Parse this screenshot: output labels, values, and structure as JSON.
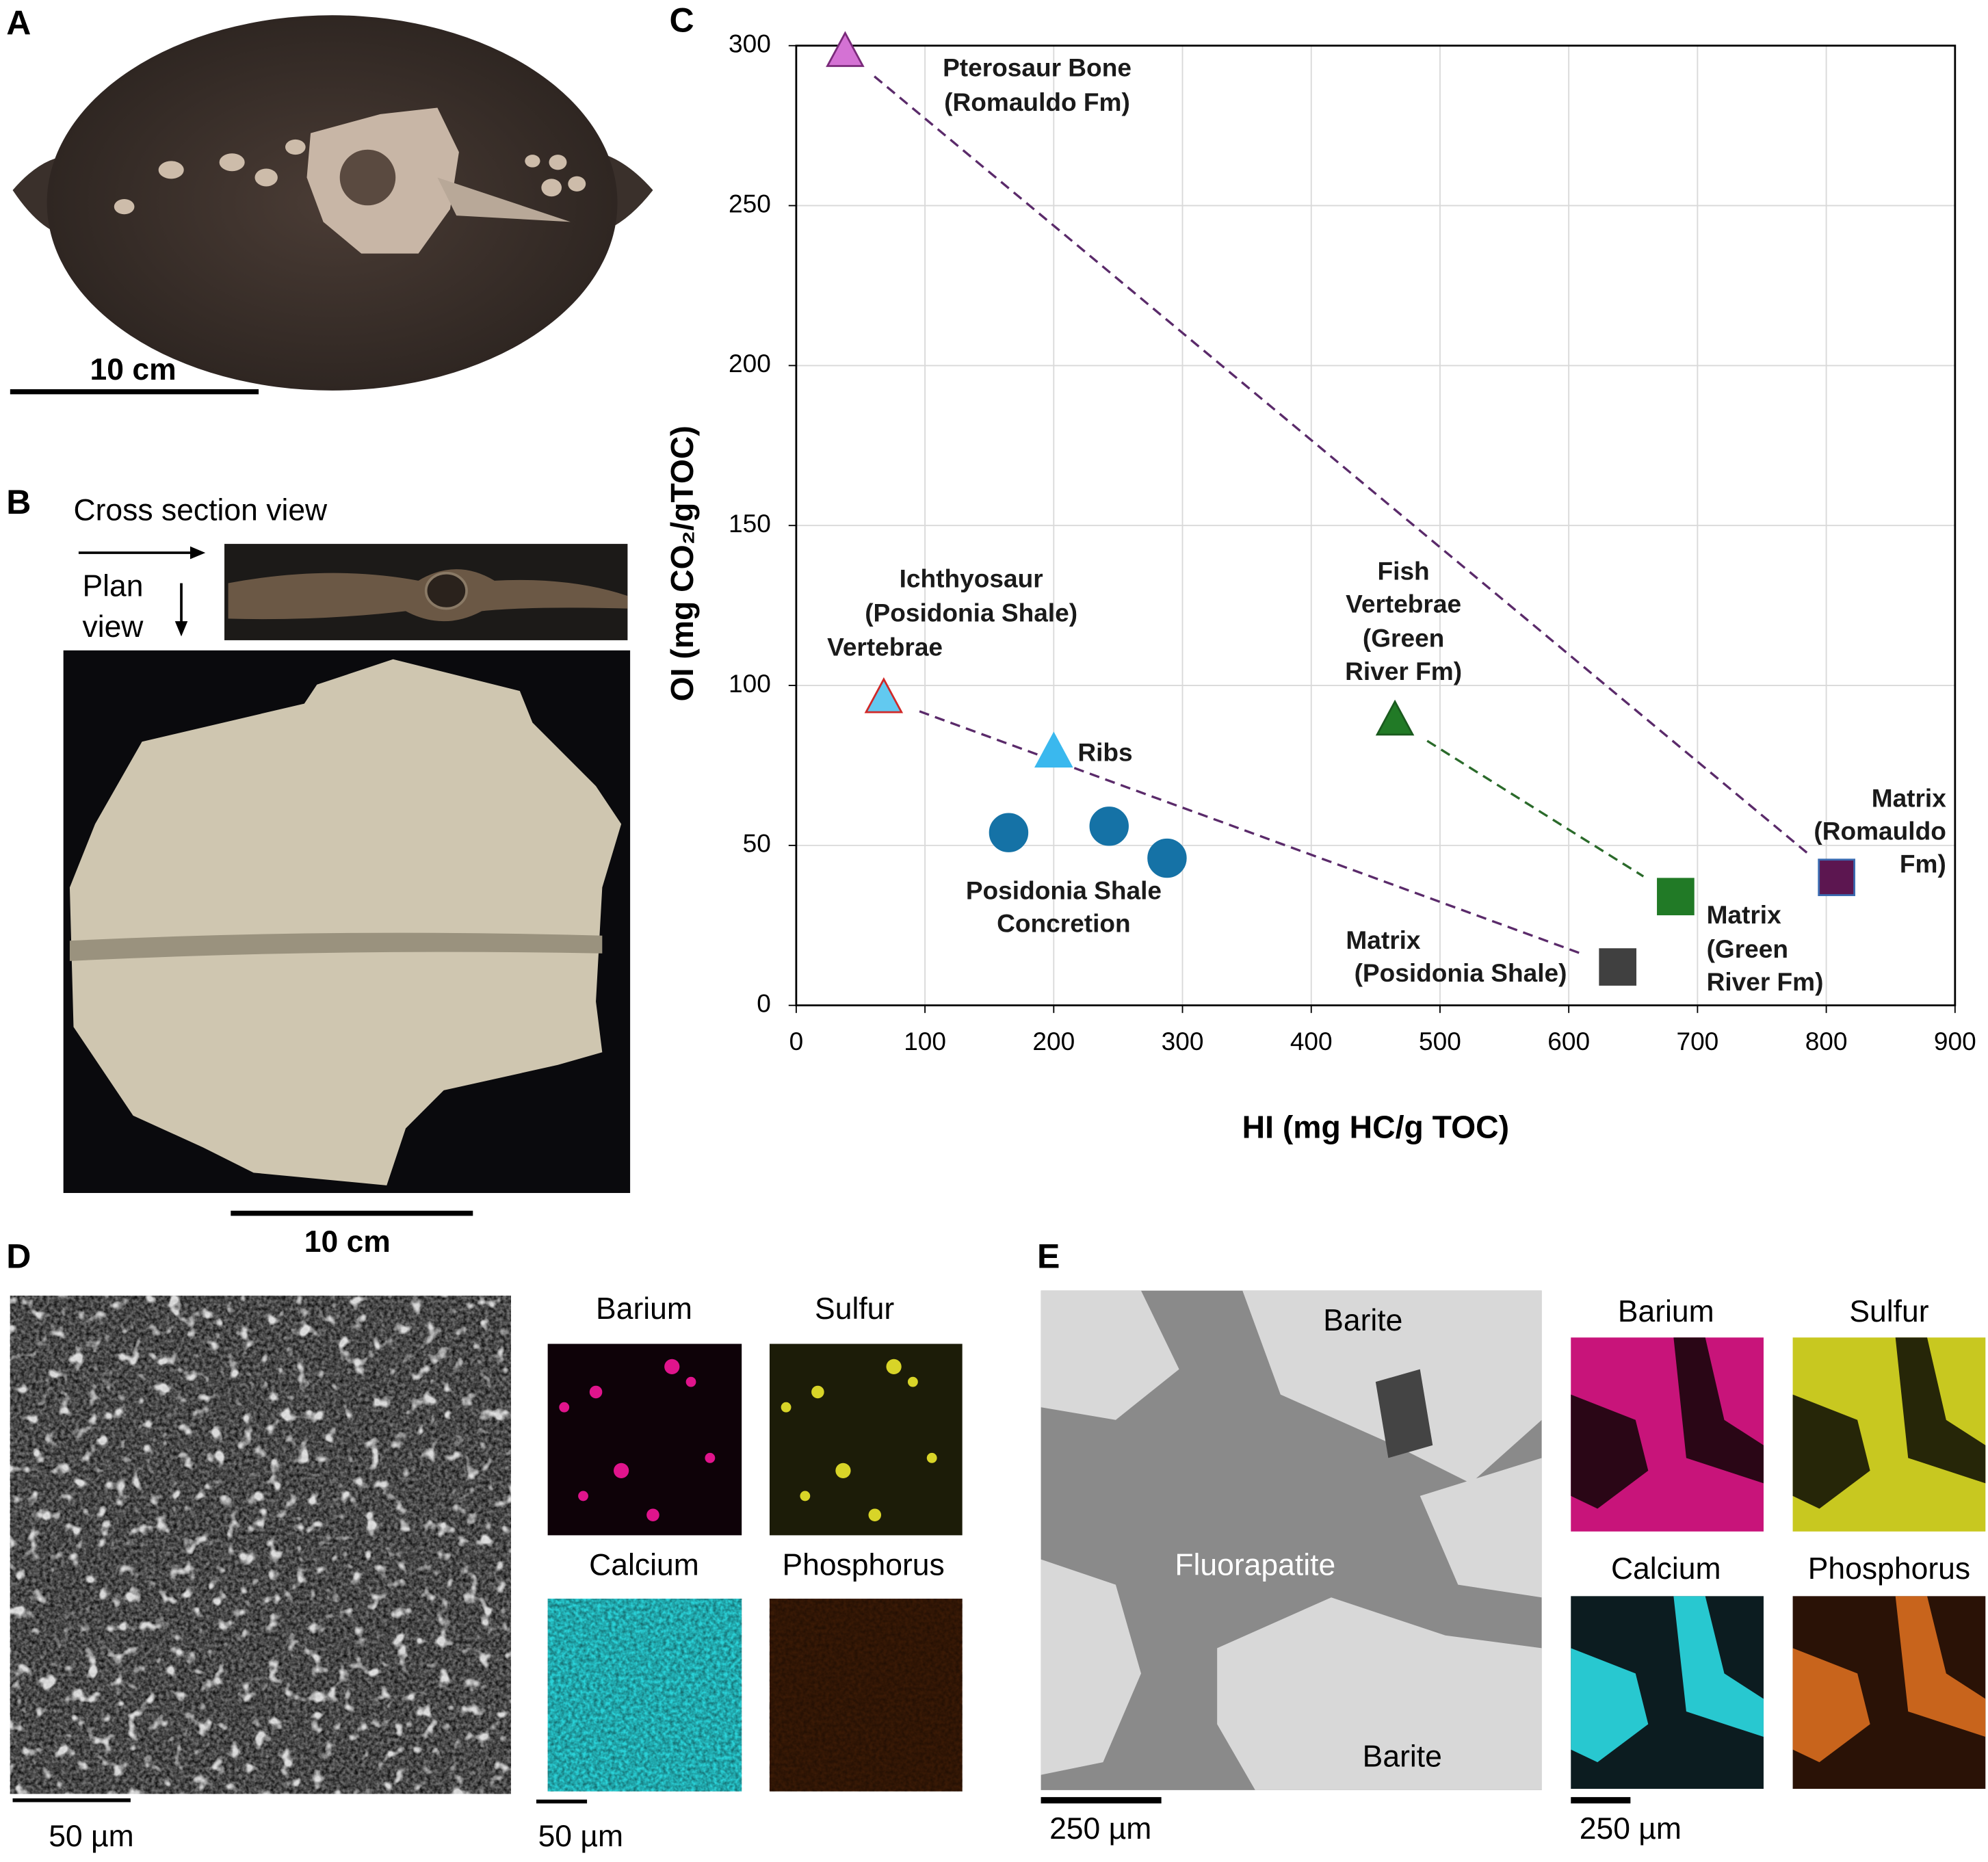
{
  "panels": {
    "a": {
      "label": "A",
      "scale": "10 cm"
    },
    "b": {
      "label": "B",
      "cross_section": "Cross section view",
      "plan_view": [
        "Plan",
        "view"
      ],
      "scale": "10 cm"
    },
    "d": {
      "label": "D",
      "maps": [
        "Barium",
        "Sulfur",
        "Calcium",
        "Phosphorus"
      ],
      "scale_image": "50 µm",
      "scale_maps": "50 µm"
    },
    "e": {
      "label": "E",
      "annotations": [
        "Barite",
        "Fluorapatite",
        "Barite"
      ],
      "maps": [
        "Barium",
        "Sulfur",
        "Calcium",
        "Phosphorus"
      ],
      "scale_image": "250 µm",
      "scale_maps": "250 µm"
    }
  },
  "chart_data": {
    "type": "scatter",
    "panel_label": "C",
    "xlabel": "HI (mg HC/g TOC)",
    "ylabel": "OI (mg CO₂/gTOC)",
    "xlim": [
      0,
      900
    ],
    "ylim": [
      0,
      300
    ],
    "xticks": [
      0,
      100,
      200,
      300,
      400,
      500,
      600,
      700,
      800,
      900
    ],
    "yticks": [
      0,
      50,
      100,
      150,
      200,
      250,
      300
    ],
    "grid": true,
    "series": [
      {
        "name": [
          "Pterosaur Bone",
          "(Romauldo Fm)"
        ],
        "marker": "triangle",
        "color": "#d472d4",
        "edgecolor": "#7a2a7a",
        "x": [
          38
        ],
        "y": [
          298
        ]
      },
      {
        "name": [
          "Ichthyosaur",
          "(Posidonia Shale)",
          "Vertebrae"
        ],
        "marker": "triangle",
        "color": "#62c9f0",
        "edgecolor": "#d02828",
        "x": [
          68
        ],
        "y": [
          96
        ]
      },
      {
        "name": [
          "Ribs"
        ],
        "marker": "triangle",
        "color": "#3ab8ee",
        "edgecolor": "#3ab8ee",
        "x": [
          200
        ],
        "y": [
          79
        ]
      },
      {
        "name": [
          "Posidonia Shale",
          "Concretion"
        ],
        "marker": "circle",
        "color": "#1572a6",
        "edgecolor": "#1572a6",
        "x": [
          165,
          243,
          288
        ],
        "y": [
          54,
          56,
          46
        ]
      },
      {
        "name": [
          "Fish",
          "Vertebrae",
          "(Green",
          "River Fm)"
        ],
        "marker": "triangle",
        "color": "#217a26",
        "edgecolor": "#1a5a1e",
        "x": [
          465
        ],
        "y": [
          89
        ]
      },
      {
        "name": [
          "Matrix",
          "(Green",
          "River Fm)"
        ],
        "marker": "square",
        "color": "#217a26",
        "edgecolor": "#217a26",
        "x": [
          683
        ],
        "y": [
          34
        ]
      },
      {
        "name": [
          "Matrix",
          "(Posidonia Shale)"
        ],
        "marker": "square",
        "color": "#404040",
        "edgecolor": "#404040",
        "x": [
          638
        ],
        "y": [
          12
        ]
      },
      {
        "name": [
          "Matrix",
          "(Romauldo",
          "Fm)"
        ],
        "marker": "square",
        "color": "#5c1650",
        "edgecolor": "#3a6ab0",
        "x": [
          808
        ],
        "y": [
          40
        ]
      }
    ]
  }
}
